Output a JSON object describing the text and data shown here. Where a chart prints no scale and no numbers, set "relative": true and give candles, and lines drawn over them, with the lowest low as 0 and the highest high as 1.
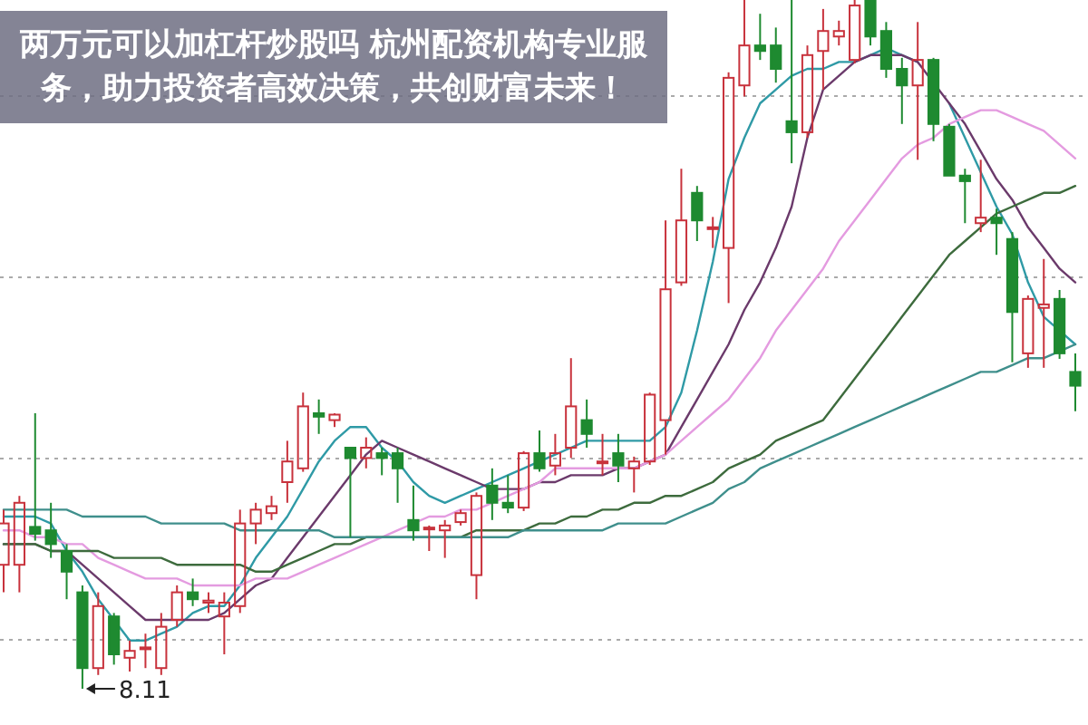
{
  "chart_data": {
    "type": "candlestick",
    "relative": true,
    "title": "两万元可以加杠杆炒股吗 杭州配资机构专业服务，助力投资者高效决策，共创财富未来！",
    "grid": "y",
    "categories": [
      null,
      null,
      null,
      null,
      null,
      null,
      null,
      null,
      null,
      null,
      null,
      null,
      null,
      null,
      null,
      null,
      null,
      null,
      null,
      null,
      null,
      null,
      null,
      null,
      null,
      null,
      null,
      null,
      null,
      null,
      null,
      null,
      null,
      null,
      null,
      null,
      null,
      null,
      null,
      null,
      null,
      null,
      null,
      null,
      null,
      null,
      null,
      null,
      null,
      null,
      null,
      null,
      null,
      null,
      null,
      null,
      null,
      null,
      null,
      null,
      null,
      null,
      null,
      null,
      null,
      null,
      null,
      null,
      null
    ],
    "ohlc": [
      [
        0.18,
        0.26,
        0.14,
        0.24
      ],
      [
        0.18,
        0.28,
        0.14,
        0.27
      ],
      [
        0.235,
        0.4,
        0.215,
        0.225
      ],
      [
        0.23,
        0.27,
        0.19,
        0.21
      ],
      [
        0.2,
        0.21,
        0.13,
        0.17
      ],
      [
        0.14,
        0.15,
        0,
        0.03
      ],
      [
        0.03,
        0.14,
        0.02,
        0.12
      ],
      [
        0.105,
        0.11,
        0.035,
        0.05
      ],
      [
        0.045,
        0.07,
        0.025,
        0.055
      ],
      [
        0.058,
        0.08,
        0.03,
        0.06
      ],
      [
        0.03,
        0.11,
        0.02,
        0.09
      ],
      [
        0.1,
        0.15,
        0.09,
        0.14
      ],
      [
        0.14,
        0.16,
        0.12,
        0.13
      ],
      [
        0.125,
        0.14,
        0.11,
        0.128
      ],
      [
        0.105,
        0.14,
        0.05,
        0.125
      ],
      [
        0.12,
        0.26,
        0.11,
        0.24
      ],
      [
        0.24,
        0.27,
        0.21,
        0.26
      ],
      [
        0.255,
        0.28,
        0.245,
        0.265
      ],
      [
        0.3,
        0.36,
        0.27,
        0.33
      ],
      [
        0.32,
        0.43,
        0.315,
        0.41
      ],
      [
        0.4,
        0.42,
        0.37,
        0.395
      ],
      [
        0.39,
        0.4,
        0.38,
        0.398
      ],
      [
        0.35,
        0.35,
        0.22,
        0.335
      ],
      [
        0.335,
        0.365,
        0.32,
        0.35
      ],
      [
        0.342,
        0.35,
        0.31,
        0.335
      ],
      [
        0.342,
        0.35,
        0.27,
        0.32
      ],
      [
        0.245,
        0.295,
        0.215,
        0.23
      ],
      [
        0.232,
        0.237,
        0.2,
        0.234
      ],
      [
        0.23,
        0.245,
        0.19,
        0.237
      ],
      [
        0.242,
        0.26,
        0.237,
        0.255
      ],
      [
        0.165,
        0.285,
        0.13,
        0.28
      ],
      [
        0.295,
        0.32,
        0.245,
        0.27
      ],
      [
        0.27,
        0.31,
        0.255,
        0.263
      ],
      [
        0.263,
        0.345,
        0.258,
        0.342
      ],
      [
        0.342,
        0.375,
        0.315,
        0.32
      ],
      [
        0.324,
        0.37,
        0.31,
        0.342
      ],
      [
        0.35,
        0.48,
        0.335,
        0.41
      ],
      [
        0.39,
        0.42,
        0.35,
        0.37
      ],
      [
        0.33,
        0.37,
        0.31,
        0.33
      ],
      [
        0.342,
        0.37,
        0.3,
        0.324
      ],
      [
        0.32,
        0.337,
        0.285,
        0.33
      ],
      [
        0.33,
        0.43,
        0.325,
        0.427
      ],
      [
        0.39,
        0.68,
        0.34,
        0.58
      ],
      [
        0.59,
        0.755,
        0.585,
        0.68
      ],
      [
        0.72,
        0.73,
        0.65,
        0.68
      ],
      [
        0.67,
        0.685,
        0.64,
        0.67
      ],
      [
        0.64,
        0.895,
        0.56,
        0.887
      ],
      [
        0.876,
        1,
        0.86,
        0.934
      ],
      [
        0.934,
        0.98,
        0.913,
        0.926
      ],
      [
        0.934,
        0.96,
        0.88,
        0.9
      ],
      [
        0.824,
        1,
        0.763,
        0.808
      ],
      [
        0.808,
        0.934,
        0.8,
        0.92
      ],
      [
        0.926,
        0.987,
        0.87,
        0.955
      ],
      [
        0.947,
        0.97,
        0.934,
        0.955
      ],
      [
        0.913,
        1,
        0.908,
        0.992
      ],
      [
        1,
        1,
        0.934,
        0.947
      ],
      [
        0.955,
        0.968,
        0.887,
        0.9
      ],
      [
        0.9,
        0.916,
        0.82,
        0.876
      ],
      [
        0.876,
        0.968,
        0.768,
        0.913
      ],
      [
        0.913,
        0.916,
        0.795,
        0.82
      ],
      [
        0.816,
        0.82,
        0.745,
        0.745
      ],
      [
        0.745,
        0.755,
        0.676,
        0.737
      ],
      [
        0.676,
        0.768,
        0.663,
        0.684
      ],
      [
        0.684,
        0.697,
        0.63,
        0.676
      ],
      [
        0.653,
        0.663,
        0.474,
        0.547
      ],
      [
        0.487,
        0.571,
        0.466,
        0.566
      ],
      [
        0.553,
        0.624,
        0.466,
        0.558
      ],
      [
        0.566,
        0.579,
        0.479,
        0.487
      ],
      [
        0.46,
        0.487,
        0.403,
        0.44
      ]
    ],
    "series": [
      {
        "type": "line",
        "color": "#2f9aa6",
        "values": [
          0.25,
          0.25,
          0.25,
          0.24,
          0.2,
          0.17,
          0.13,
          0.1,
          0.07,
          0.07,
          0.08,
          0.09,
          0.11,
          0.12,
          0.12,
          0.15,
          0.19,
          0.22,
          0.25,
          0.29,
          0.33,
          0.36,
          0.38,
          0.38,
          0.35,
          0.33,
          0.3,
          0.28,
          0.27,
          0.28,
          0.29,
          0.3,
          0.31,
          0.32,
          0.33,
          0.34,
          0.35,
          0.36,
          0.36,
          0.36,
          0.36,
          0.36,
          0.38,
          0.43,
          0.52,
          0.62,
          0.74,
          0.8,
          0.85,
          0.87,
          0.89,
          0.9,
          0.9,
          0.91,
          0.91,
          0.92,
          0.93,
          0.92,
          0.91,
          null,
          0.85,
          0.8,
          0.75,
          0.7,
          0.66,
          0.59,
          0.54,
          0.52,
          0.5
        ]
      },
      {
        "type": "line",
        "color": "#6b3a6b",
        "values": [
          0.21,
          0.21,
          0.21,
          0.2,
          0.2,
          0.18,
          0.16,
          0.14,
          0.12,
          0.1,
          0.1,
          0.1,
          0.1,
          0.1,
          0.11,
          0.13,
          0.15,
          0.16,
          0.19,
          0.22,
          0.25,
          0.28,
          0.31,
          0.34,
          0.36,
          0.35,
          0.34,
          0.33,
          0.32,
          0.31,
          0.3,
          0.29,
          0.29,
          0.29,
          0.3,
          0.3,
          0.31,
          0.31,
          0.31,
          0.32,
          0.32,
          0.33,
          0.34,
          0.38,
          0.42,
          0.46,
          0.5,
          0.55,
          0.59,
          0.64,
          0.7,
          0.8,
          0.87,
          0.89,
          0.91,
          0.92,
          0.92,
          0.92,
          0.91,
          0.88,
          0.85,
          0.82,
          0.78,
          0.74,
          0.71,
          0.67,
          0.64,
          0.61,
          0.59
        ]
      },
      {
        "type": "line",
        "color": "#e49be0",
        "values": [
          0.23,
          0.23,
          0.22,
          0.22,
          0.21,
          0.21,
          0.19,
          0.18,
          0.17,
          0.16,
          0.16,
          0.16,
          0.15,
          0.15,
          0.15,
          0.15,
          0.16,
          0.16,
          0.16,
          0.17,
          0.18,
          0.19,
          0.2,
          0.21,
          0.22,
          0.23,
          0.24,
          0.25,
          0.25,
          0.26,
          0.26,
          0.27,
          0.28,
          0.29,
          0.3,
          0.32,
          0.32,
          0.32,
          0.32,
          0.32,
          0.32,
          0.33,
          0.34,
          0.36,
          0.38,
          0.4,
          0.42,
          0.45,
          0.48,
          0.52,
          0.55,
          0.58,
          0.61,
          0.65,
          0.68,
          0.71,
          0.74,
          0.77,
          0.79,
          0.8,
          0.82,
          0.83,
          0.84,
          0.84,
          0.83,
          0.82,
          0.81,
          0.79,
          0.77
        ]
      },
      {
        "type": "line",
        "color": "#3d6b3d",
        "values": [
          0.21,
          0.21,
          0.21,
          0.2,
          0.2,
          0.2,
          0.2,
          0.19,
          0.19,
          0.19,
          0.19,
          0.18,
          0.18,
          0.18,
          0.18,
          0.18,
          0.17,
          0.17,
          0.18,
          0.19,
          0.2,
          0.21,
          0.21,
          0.22,
          0.22,
          0.22,
          0.22,
          0.22,
          0.22,
          0.22,
          0.23,
          0.23,
          0.23,
          0.23,
          0.24,
          0.24,
          0.25,
          0.25,
          0.26,
          0.26,
          0.27,
          0.27,
          0.28,
          0.28,
          0.29,
          0.3,
          0.32,
          0.33,
          0.34,
          0.36,
          0.37,
          0.38,
          0.39,
          0.42,
          0.45,
          0.48,
          0.51,
          0.54,
          0.57,
          0.6,
          0.63,
          0.65,
          0.67,
          0.69,
          0.7,
          0.71,
          0.72,
          0.72,
          0.73
        ]
      },
      {
        "type": "line",
        "color": "#3f8f8c",
        "values": [
          0.26,
          0.26,
          0.26,
          0.26,
          0.26,
          0.25,
          0.25,
          0.25,
          0.25,
          0.25,
          0.24,
          0.24,
          0.24,
          0.24,
          0.24,
          0.23,
          0.23,
          0.23,
          0.23,
          0.23,
          0.23,
          0.22,
          0.22,
          0.22,
          0.22,
          0.22,
          0.22,
          0.22,
          0.22,
          0.22,
          0.22,
          0.22,
          0.22,
          0.23,
          0.23,
          0.23,
          0.23,
          0.23,
          0.23,
          0.24,
          0.24,
          0.24,
          0.24,
          0.25,
          0.26,
          0.27,
          0.29,
          0.3,
          0.32,
          0.33,
          0.34,
          0.35,
          0.36,
          0.37,
          0.38,
          0.39,
          0.4,
          0.41,
          0.42,
          0.43,
          0.44,
          0.45,
          0.46,
          0.46,
          0.47,
          0.48,
          0.48,
          0.49,
          0.5
        ]
      }
    ],
    "annotations": [
      "8.11"
    ]
  }
}
